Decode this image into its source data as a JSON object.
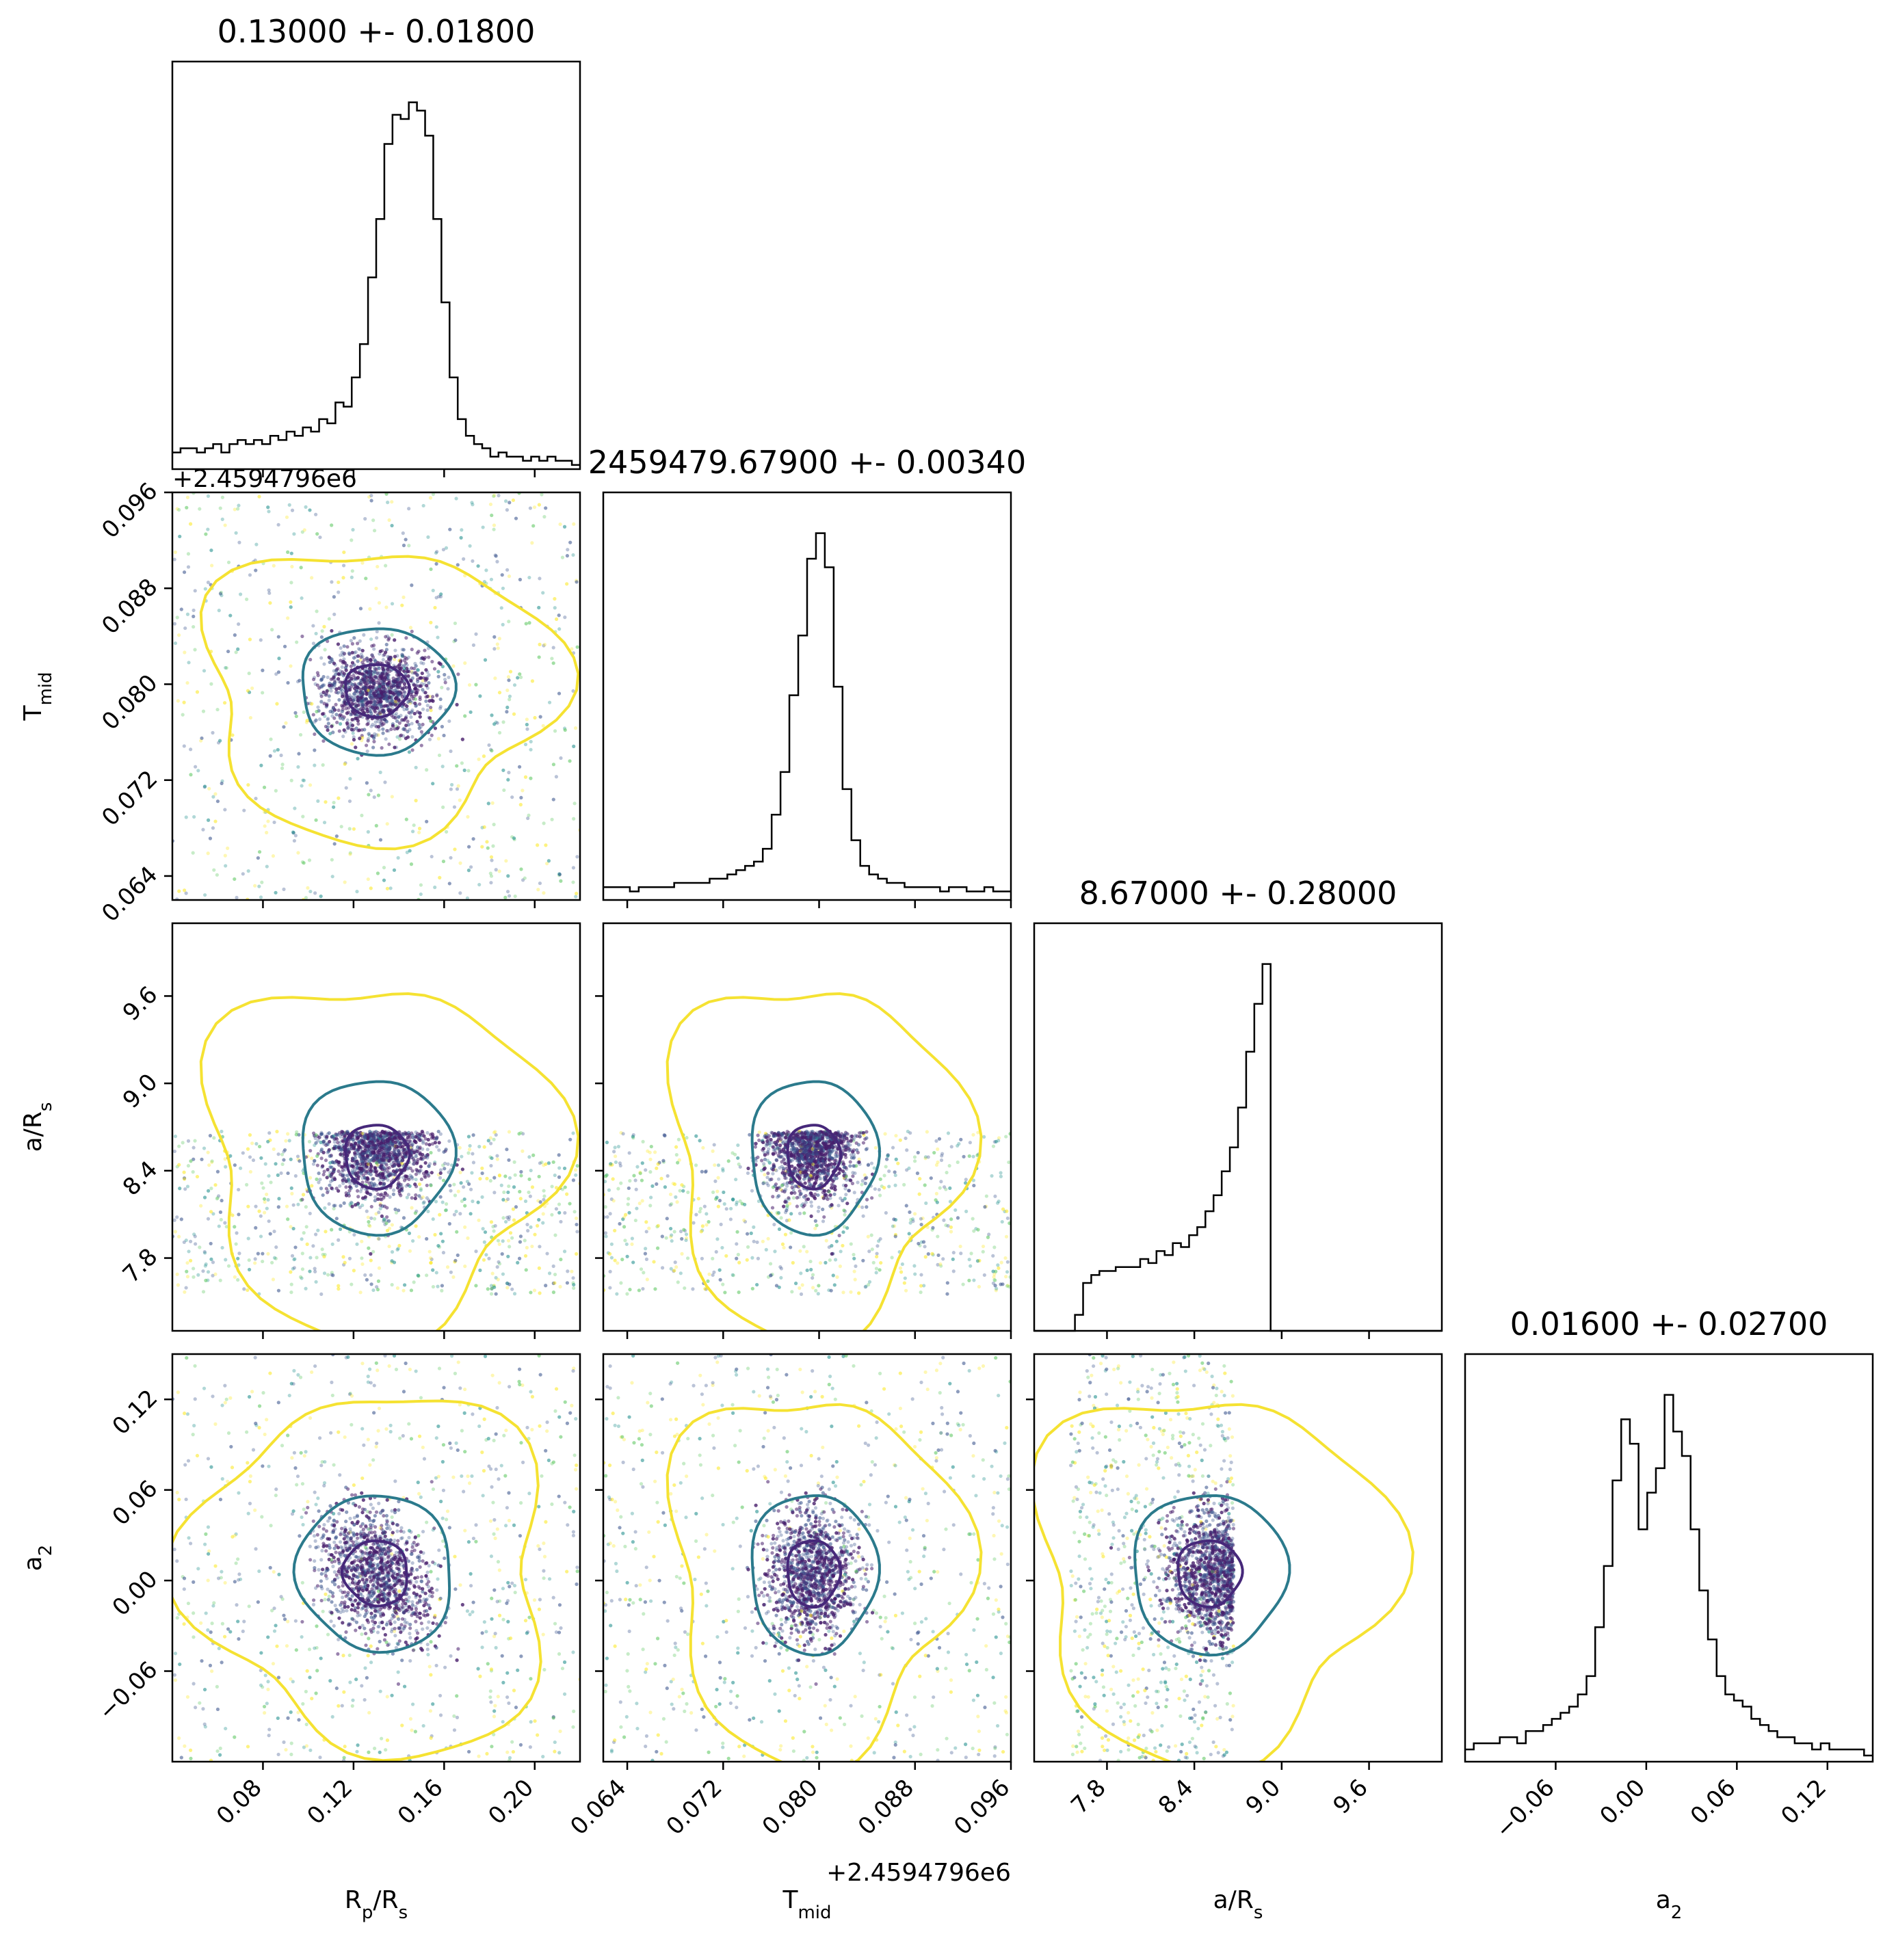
{
  "chart_data": {
    "type": "corner",
    "parameters": [
      {
        "key": "rp",
        "label_base": "R",
        "label_sub": "p",
        "label_tail": "/R",
        "label_tail_sub": "s",
        "range": [
          0.04,
          0.22
        ],
        "ticks": [
          "0.08",
          "0.12",
          "0.16",
          "0.20"
        ],
        "tick_values": [
          0.08,
          0.12,
          0.16,
          0.2
        ]
      },
      {
        "key": "tmid",
        "label_base": "T",
        "label_sub": "mid",
        "range": [
          0.062,
          0.096
        ],
        "ticks": [
          "0.064",
          "0.072",
          "0.080",
          "0.088",
          "0.096"
        ],
        "tick_values": [
          0.064,
          0.072,
          0.08,
          0.088,
          0.096
        ],
        "offset_text": "+2.4594796e6"
      },
      {
        "key": "ars",
        "label_base": "a/R",
        "label_sub": "s",
        "range": [
          7.3,
          10.1
        ],
        "ticks": [
          "7.8",
          "8.4",
          "9.0",
          "9.6"
        ],
        "tick_values": [
          7.8,
          8.4,
          9.0,
          9.6
        ]
      },
      {
        "key": "a2",
        "label_base": "a",
        "label_sub": "2",
        "range": [
          -0.12,
          0.15
        ],
        "ticks": [
          "−0.06",
          "0.00",
          "0.06",
          "0.12"
        ],
        "tick_values": [
          -0.06,
          0.0,
          0.06,
          0.12
        ]
      }
    ],
    "titles": [
      "0.13000 +- 0.01800",
      "2459479.67900 +- 0.00340",
      "8.67000 +- 0.28000",
      "0.01600 +- 0.02700"
    ],
    "histograms": [
      {
        "edges": [
          0.04,
          0.22
        ],
        "counts": [
          4,
          5,
          5,
          4,
          5,
          6,
          4,
          6,
          7,
          6,
          7,
          6,
          8,
          7,
          9,
          8,
          10,
          9,
          12,
          11,
          16,
          15,
          22,
          30,
          46,
          60,
          78,
          85,
          84,
          88,
          86,
          80,
          60,
          40,
          22,
          12,
          8,
          6,
          5,
          3,
          4,
          3,
          3,
          2,
          3,
          2,
          3,
          2,
          2,
          1
        ]
      },
      {
        "edges": [
          0.062,
          0.096
        ],
        "counts": [
          3,
          3,
          3,
          2,
          3,
          3,
          3,
          3,
          4,
          4,
          4,
          4,
          5,
          5,
          6,
          7,
          8,
          9,
          12,
          20,
          30,
          48,
          62,
          80,
          86,
          78,
          50,
          26,
          14,
          8,
          6,
          5,
          4,
          4,
          3,
          3,
          3,
          3,
          2,
          3,
          3,
          2,
          2,
          3,
          2,
          2
        ]
      },
      {
        "edges": [
          7.3,
          10.1
        ],
        "counts": [
          0,
          0,
          0,
          0,
          0,
          4,
          12,
          14,
          15,
          15,
          16,
          16,
          16,
          18,
          17,
          20,
          19,
          22,
          21,
          24,
          26,
          30,
          34,
          40,
          46,
          56,
          70,
          82,
          92,
          0,
          0,
          0,
          0,
          0,
          0,
          0,
          0,
          0,
          0,
          0,
          0,
          0,
          0,
          0,
          0,
          0,
          0,
          0,
          0,
          0
        ]
      },
      {
        "edges": [
          -0.12,
          0.15
        ],
        "counts": [
          2,
          3,
          3,
          3,
          4,
          4,
          3,
          5,
          5,
          6,
          7,
          8,
          9,
          11,
          14,
          22,
          32,
          46,
          56,
          52,
          38,
          44,
          48,
          60,
          54,
          50,
          38,
          28,
          20,
          14,
          11,
          10,
          9,
          7,
          6,
          5,
          4,
          4,
          3,
          3,
          2,
          3,
          2,
          2,
          2,
          2,
          1
        ]
      }
    ],
    "contours": {
      "levels": [
        "inner",
        "middle",
        "outer"
      ],
      "colors": [
        "#46287a",
        "#2b7a8c",
        "#f5e232"
      ]
    },
    "scatter_colors": [
      "#471e6b",
      "#3a528b",
      "#20908c",
      "#5ec961",
      "#fde725"
    ],
    "sample_count": 2600,
    "ars_upper_bound": 8.67
  }
}
